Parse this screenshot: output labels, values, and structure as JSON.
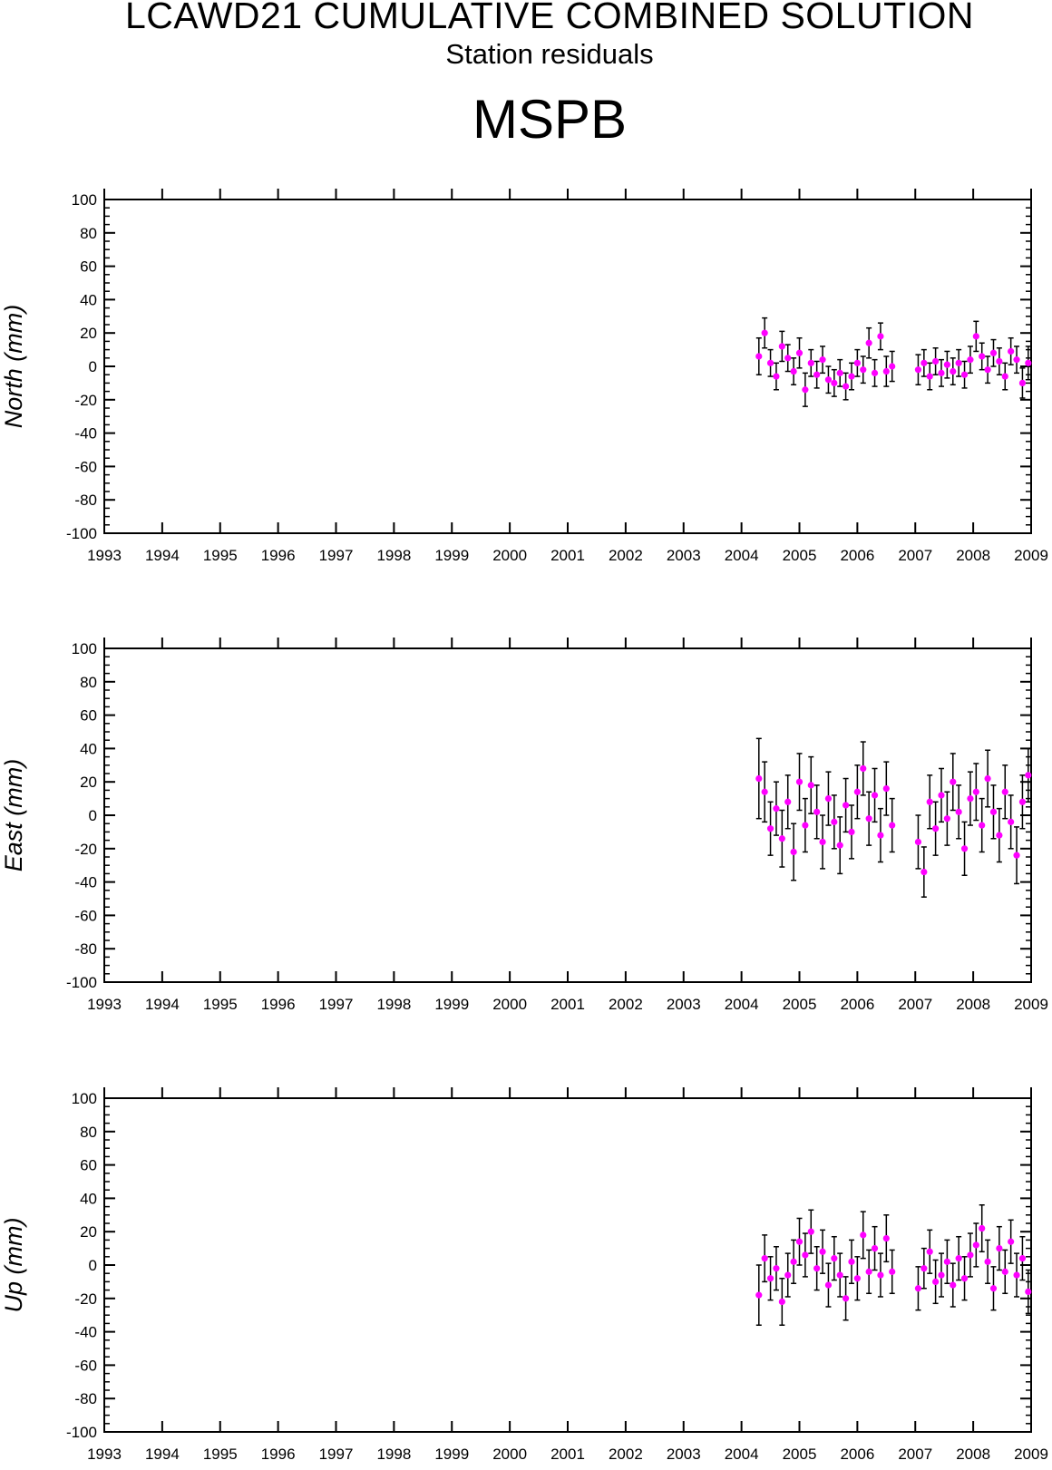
{
  "header": {
    "title": "LCAWD21 CUMULATIVE COMBINED SOLUTION",
    "subtitle": "Station residuals",
    "station": "MSPB"
  },
  "colors": {
    "marker": "#ff00ff",
    "errorbar": "#000000",
    "axis": "#000000"
  },
  "chart_data": [
    {
      "type": "scatter",
      "ylabel": "North (mm)",
      "xlim": [
        1993,
        2009
      ],
      "ylim": [
        -100,
        100
      ],
      "xticks": [
        "1993",
        "1994",
        "1995",
        "1996",
        "1997",
        "1998",
        "1999",
        "2000",
        "2001",
        "2002",
        "2003",
        "2004",
        "2005",
        "2006",
        "2007",
        "2008",
        "2009"
      ],
      "yticks": [
        "100",
        "80",
        "60",
        "40",
        "20",
        "0",
        "-20",
        "-40",
        "-60",
        "-80",
        "-100"
      ],
      "grid": false,
      "segments": [
        {
          "x_start": 2004.3,
          "x_end": 2006.6,
          "typical_y_range": [
            -10,
            15
          ],
          "typical_error_mm": 8
        },
        {
          "x_start": 2007.05,
          "x_end": 2008.95,
          "typical_y_range": [
            -8,
            12
          ],
          "typical_error_mm": 8
        }
      ],
      "x": [
        2004.3,
        2004.4,
        2004.5,
        2004.6,
        2004.7,
        2004.8,
        2004.9,
        2005.0,
        2005.1,
        2005.2,
        2005.3,
        2005.4,
        2005.5,
        2005.6,
        2005.7,
        2005.8,
        2005.9,
        2006.0,
        2006.1,
        2006.2,
        2006.3,
        2006.4,
        2006.5,
        2006.6,
        2007.05,
        2007.15,
        2007.25,
        2007.35,
        2007.45,
        2007.55,
        2007.65,
        2007.75,
        2007.85,
        2007.95,
        2008.05,
        2008.15,
        2008.25,
        2008.35,
        2008.45,
        2008.55,
        2008.65,
        2008.75,
        2008.85,
        2008.95
      ],
      "y": [
        6,
        20,
        2,
        -6,
        12,
        5,
        -3,
        8,
        -14,
        2,
        -5,
        4,
        -8,
        -10,
        -4,
        -12,
        -6,
        2,
        -2,
        14,
        -4,
        18,
        -3,
        0,
        -2,
        2,
        -6,
        3,
        -4,
        1,
        -3,
        2,
        -5,
        4,
        18,
        6,
        -2,
        8,
        3,
        -6,
        9,
        4,
        -10,
        2
      ],
      "yerr": [
        11,
        9,
        8,
        8,
        9,
        8,
        8,
        9,
        10,
        8,
        8,
        8,
        8,
        8,
        8,
        8,
        8,
        8,
        8,
        9,
        8,
        8,
        9,
        9,
        9,
        8,
        8,
        8,
        8,
        8,
        8,
        8,
        8,
        8,
        9,
        8,
        8,
        8,
        8,
        8,
        8,
        8,
        9,
        10
      ]
    },
    {
      "type": "scatter",
      "ylabel": "East (mm)",
      "xlim": [
        1993,
        2009
      ],
      "ylim": [
        -100,
        100
      ],
      "xticks": [
        "1993",
        "1994",
        "1995",
        "1996",
        "1997",
        "1998",
        "1999",
        "2000",
        "2001",
        "2002",
        "2003",
        "2004",
        "2005",
        "2006",
        "2007",
        "2008",
        "2009"
      ],
      "yticks": [
        "100",
        "80",
        "60",
        "40",
        "20",
        "0",
        "-20",
        "-40",
        "-60",
        "-80",
        "-100"
      ],
      "grid": false,
      "x": [
        2004.3,
        2004.4,
        2004.5,
        2004.6,
        2004.7,
        2004.8,
        2004.9,
        2005.0,
        2005.1,
        2005.2,
        2005.3,
        2005.4,
        2005.5,
        2005.6,
        2005.7,
        2005.8,
        2005.9,
        2006.0,
        2006.1,
        2006.2,
        2006.3,
        2006.4,
        2006.5,
        2006.6,
        2007.05,
        2007.15,
        2007.25,
        2007.35,
        2007.45,
        2007.55,
        2007.65,
        2007.75,
        2007.85,
        2007.95,
        2008.05,
        2008.15,
        2008.25,
        2008.35,
        2008.45,
        2008.55,
        2008.65,
        2008.75,
        2008.85,
        2008.95
      ],
      "y": [
        22,
        14,
        -8,
        4,
        -14,
        8,
        -22,
        20,
        -6,
        18,
        2,
        -16,
        10,
        -4,
        -18,
        6,
        -10,
        14,
        28,
        -2,
        12,
        -12,
        16,
        -6,
        -16,
        -34,
        8,
        -8,
        12,
        -2,
        20,
        2,
        -20,
        10,
        14,
        -6,
        22,
        2,
        -12,
        14,
        -4,
        -24,
        8,
        24
      ],
      "yerr": [
        24,
        18,
        16,
        16,
        17,
        16,
        17,
        17,
        16,
        17,
        16,
        16,
        16,
        16,
        17,
        16,
        16,
        16,
        16,
        16,
        16,
        16,
        16,
        16,
        16,
        15,
        16,
        16,
        16,
        16,
        17,
        16,
        16,
        16,
        17,
        16,
        17,
        16,
        16,
        16,
        16,
        17,
        16,
        16
      ]
    },
    {
      "type": "scatter",
      "ylabel": "Up (mm)",
      "xlim": [
        1993,
        2009
      ],
      "ylim": [
        -100,
        100
      ],
      "xticks": [
        "1993",
        "1994",
        "1995",
        "1996",
        "1997",
        "1998",
        "1999",
        "2000",
        "2001",
        "2002",
        "2003",
        "2004",
        "2005",
        "2006",
        "2007",
        "2008",
        "2009"
      ],
      "yticks": [
        "100",
        "80",
        "60",
        "40",
        "20",
        "0",
        "-20",
        "-40",
        "-60",
        "-80",
        "-100"
      ],
      "grid": false,
      "x": [
        2004.3,
        2004.4,
        2004.5,
        2004.6,
        2004.7,
        2004.8,
        2004.9,
        2005.0,
        2005.1,
        2005.2,
        2005.3,
        2005.4,
        2005.5,
        2005.6,
        2005.7,
        2005.8,
        2005.9,
        2006.0,
        2006.1,
        2006.2,
        2006.3,
        2006.4,
        2006.5,
        2006.6,
        2007.05,
        2007.15,
        2007.25,
        2007.35,
        2007.45,
        2007.55,
        2007.65,
        2007.75,
        2007.85,
        2007.95,
        2008.05,
        2008.15,
        2008.25,
        2008.35,
        2008.45,
        2008.55,
        2008.65,
        2008.75,
        2008.85,
        2008.95
      ],
      "y": [
        -18,
        4,
        -8,
        -2,
        -22,
        -6,
        2,
        14,
        6,
        20,
        -2,
        8,
        -12,
        4,
        -6,
        -20,
        2,
        -8,
        18,
        -4,
        10,
        -6,
        16,
        -4,
        -14,
        -2,
        8,
        -10,
        -6,
        2,
        -12,
        4,
        -8,
        6,
        12,
        22,
        2,
        -14,
        10,
        -4,
        14,
        -6,
        4,
        -16
      ],
      "yerr": [
        18,
        14,
        13,
        13,
        14,
        13,
        13,
        14,
        13,
        13,
        13,
        13,
        13,
        13,
        13,
        13,
        13,
        13,
        14,
        13,
        13,
        13,
        14,
        13,
        13,
        12,
        13,
        13,
        13,
        13,
        13,
        13,
        13,
        13,
        13,
        14,
        13,
        13,
        13,
        13,
        13,
        13,
        13,
        13
      ]
    }
  ]
}
